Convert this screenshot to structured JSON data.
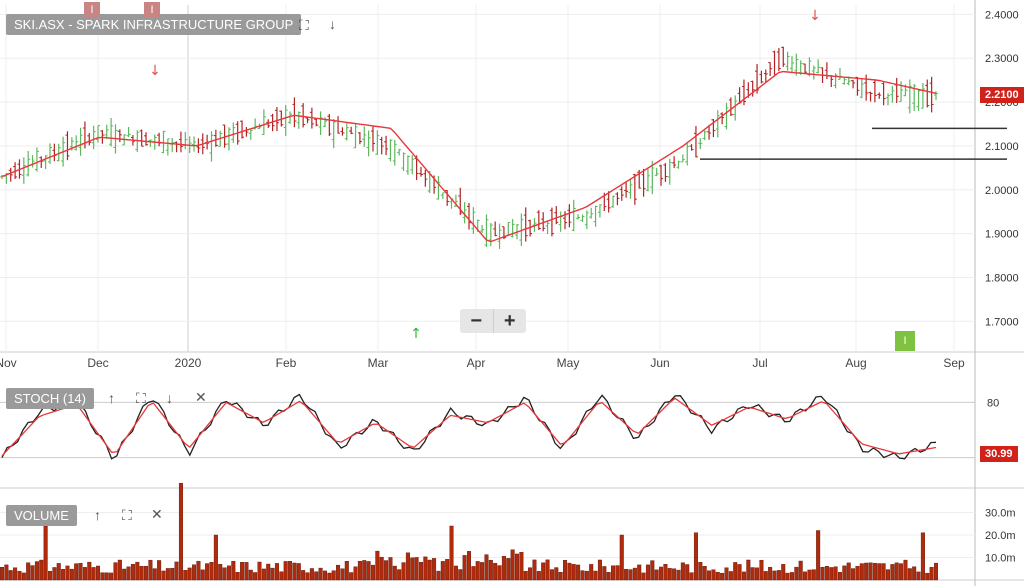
{
  "price_panel": {
    "title": "SKI.ASX - SPARK INFRASTRUCTURE GROUP",
    "flag_1": "I",
    "flag_2": "I",
    "last_price": "2.2100",
    "badge": "I"
  },
  "stoch_panel": {
    "title": "STOCH (14)",
    "last_value": "30.99"
  },
  "volume_panel": {
    "title": "VOLUME"
  },
  "colors": {
    "up": "#5cb85c",
    "down": "#b22222",
    "ma": "#e8373b",
    "stoch_k": "#222222",
    "stoch_d": "#e8373b",
    "volume": "#b02a0c"
  },
  "icons": {
    "expand": "expand-icon",
    "down": "arrow-down-icon",
    "up": "arrow-up-icon",
    "close": "close-icon",
    "zoom_out": "minus-icon",
    "zoom_in": "plus-icon"
  },
  "chart_data": [
    {
      "type": "candlestick",
      "x_tick_labels": [
        "Nov",
        "Dec",
        "2020",
        "Feb",
        "Mar",
        "Apr",
        "May",
        "Jun",
        "Jul",
        "Aug",
        "Sep"
      ],
      "y_tick_labels": [
        "1.7000",
        "1.8000",
        "1.9000",
        "2.0000",
        "2.1000",
        "2.2000",
        "2.3000",
        "2.4000"
      ],
      "ylim": [
        1.63,
        2.41
      ],
      "series": [
        {
          "name": "",
          "monthly_closes_approx": [
            2.03,
            2.13,
            2.1,
            2.17,
            2.1,
            1.9,
            1.94,
            2.07,
            2.3,
            2.22,
            2.21
          ]
        }
      ],
      "moving_average_approx": [
        2.03,
        2.12,
        2.1,
        2.17,
        2.14,
        1.88,
        1.96,
        2.1,
        2.27,
        2.25,
        2.2
      ],
      "horizontal_lines": [
        2.14,
        2.07
      ],
      "grid": true
    },
    {
      "type": "line",
      "y_tick_labels": [
        "80",
        "20"
      ],
      "ylim": [
        0,
        100
      ],
      "series": [
        {
          "name": "",
          "values": [
            20,
            70,
            82,
            18,
            88,
            25,
            84,
            55,
            88,
            30,
            60,
            25,
            70,
            55,
            85,
            28,
            88,
            40,
            90,
            50,
            78,
            60,
            88,
            30,
            20,
            35
          ]
        },
        {
          "name": "",
          "values": [
            22,
            65,
            78,
            22,
            82,
            30,
            80,
            58,
            82,
            35,
            58,
            30,
            66,
            58,
            80,
            32,
            82,
            45,
            85,
            55,
            75,
            62,
            82,
            35,
            24,
            31
          ]
        }
      ]
    },
    {
      "type": "bar",
      "y_tick_labels": [
        "30.0m",
        "20.0m",
        "10.0m"
      ],
      "ylim": [
        0,
        40
      ]
    }
  ]
}
